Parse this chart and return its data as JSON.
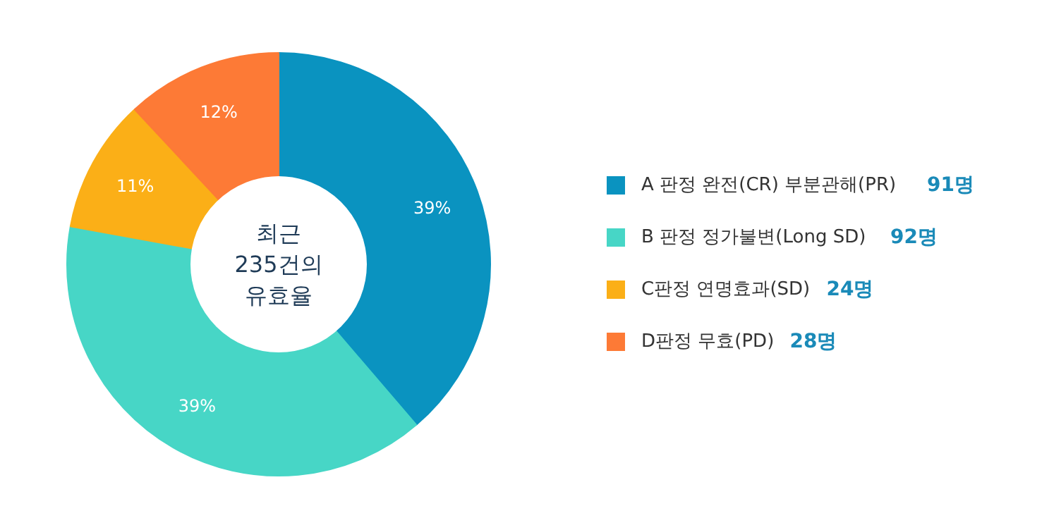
{
  "chart_data": {
    "type": "donut",
    "title": "최근 235건의 유효율",
    "categories": [
      "A 판정 완전(CR) 부분관해(PR)",
      "B 판정 정가불변(Long SD)",
      "C판정 연명효과(SD)",
      "D판정 무효(PD)"
    ],
    "values": [
      91,
      92,
      24,
      28
    ],
    "colors": [
      "#0a93c0",
      "#47d6c6",
      "#fbaf17",
      "#fd7a36"
    ],
    "value_labels": [
      "91명",
      "92명",
      "24명",
      "28명"
    ],
    "annotations": [
      {
        "text": "39%",
        "x": "A 판정 완전(CR) 부분관해(PR)"
      },
      {
        "text": "39%",
        "x": "B 판정 정가불변(Long SD)"
      },
      {
        "text": "11%",
        "x": "C판정 연명효과(SD)"
      },
      {
        "text": "12%",
        "x": "D판정 무효(PD)"
      }
    ],
    "legend": "right"
  }
}
